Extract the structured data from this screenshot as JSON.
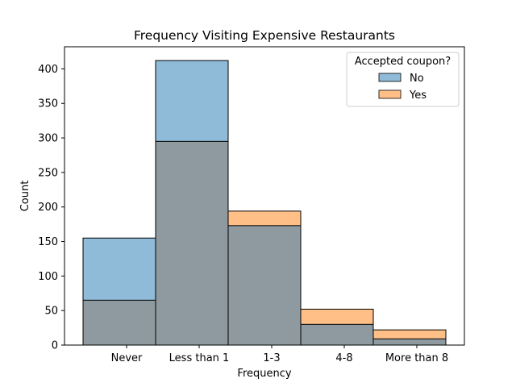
{
  "chart_data": {
    "type": "bar",
    "title": "Frequency Visiting Expensive Restaurants",
    "xlabel": "Frequency",
    "ylabel": "Count",
    "categories": [
      "Never",
      "Less than 1",
      "1-3",
      "4-8",
      "More than 8"
    ],
    "series": [
      {
        "name": "No",
        "values": [
          155,
          412,
          173,
          30,
          9
        ],
        "color": "#1f77b4"
      },
      {
        "name": "Yes",
        "values": [
          65,
          295,
          194,
          52,
          22
        ],
        "color": "#ff7f0e"
      }
    ],
    "ylim": [
      0,
      432
    ],
    "yticks": [
      0,
      50,
      100,
      150,
      200,
      250,
      300,
      350,
      400
    ],
    "legend": {
      "title": "Accepted coupon?",
      "placement": "top-right"
    },
    "grid": false,
    "overlap_color": "#8e9a9f"
  }
}
